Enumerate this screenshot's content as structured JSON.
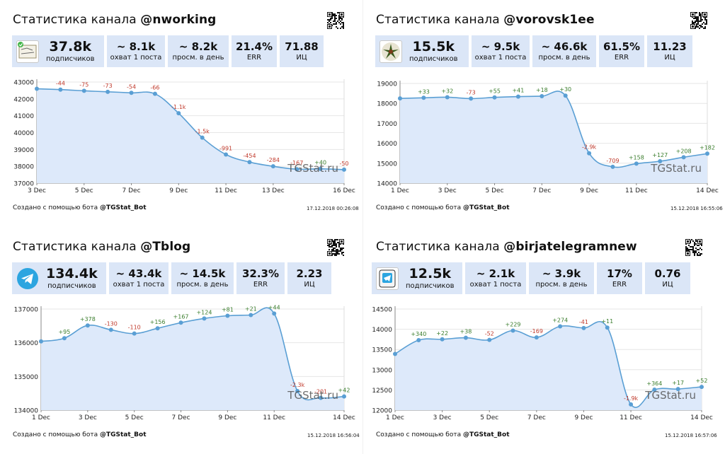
{
  "title_prefix": "Статистика канала",
  "credit_prefix": "Создано с помощью бота",
  "credit_bot": "@TGStat_Bot",
  "watermark": "TGStat.ru",
  "colors": {
    "line": "#5a9fd4",
    "fill": "#dde9fa",
    "pos": "#3a7d2c",
    "neg": "#c0392b",
    "box": "#dbe6f7"
  },
  "panels": [
    {
      "channel": "@nworking",
      "stats": [
        {
          "value": "37.8k",
          "label": "подписчиков"
        },
        {
          "value": "~ 8.1k",
          "label": "охват 1 поста"
        },
        {
          "value": "~ 8.2k",
          "label": "просм. в день"
        },
        {
          "value": "21.4%",
          "label": "ERR"
        },
        {
          "value": "71.88",
          "label": "ИЦ"
        }
      ],
      "timestamp": "17.12.2018 00:26:08",
      "chart_data": {
        "type": "area",
        "x": [
          "3 Dec",
          "4 Dec",
          "5 Dec",
          "6 Dec",
          "7 Dec",
          "8 Dec",
          "9 Dec",
          "10 Dec",
          "11 Dec",
          "12 Dec",
          "13 Dec",
          "14 Dec",
          "15 Dec",
          "16 Dec"
        ],
        "xticks": [
          "3 Dec",
          "5 Dec",
          "7 Dec",
          "9 Dec",
          "11 Dec",
          "13 Dec",
          "16 Dec"
        ],
        "values": [
          42600,
          42550,
          42480,
          42420,
          42360,
          42300,
          41150,
          39700,
          38700,
          38250,
          38000,
          37830,
          37850,
          37800
        ],
        "deltas": [
          "",
          "-44",
          "-75",
          "-73",
          "-54",
          "-66",
          "-1.1k",
          "-1.5k",
          "-991",
          "-454",
          "-284",
          "-167",
          "+40",
          "-50"
        ],
        "ylim": [
          37000,
          43000
        ],
        "yticks": [
          37000,
          38000,
          39000,
          40000,
          41000,
          42000,
          43000
        ]
      }
    },
    {
      "channel": "@vorovsk1ee",
      "stats": [
        {
          "value": "15.5k",
          "label": "подписчиков"
        },
        {
          "value": "~ 9.5k",
          "label": "охват 1 поста"
        },
        {
          "value": "~ 46.6k",
          "label": "просм. в день"
        },
        {
          "value": "61.5%",
          "label": "ERR"
        },
        {
          "value": "11.23",
          "label": "ИЦ"
        }
      ],
      "timestamp": "15.12.2018 16:55:06",
      "chart_data": {
        "type": "area",
        "x": [
          "1 Dec",
          "2 Dec",
          "3 Dec",
          "4 Dec",
          "5 Dec",
          "6 Dec",
          "7 Dec",
          "8 Dec",
          "9 Dec",
          "10 Dec",
          "11 Dec",
          "12 Dec",
          "13 Dec",
          "14 Dec"
        ],
        "xticks": [
          "1 Dec",
          "3 Dec",
          "5 Dec",
          "7 Dec",
          "9 Dec",
          "11 Dec",
          "14 Dec"
        ],
        "values": [
          18250,
          18280,
          18310,
          18240,
          18300,
          18340,
          18360,
          18390,
          15500,
          14820,
          14980,
          15100,
          15300,
          15480
        ],
        "deltas": [
          "",
          "+33",
          "+32",
          "-73",
          "+55",
          "+41",
          "+18",
          "+30",
          "-2.9k",
          "-709",
          "+158",
          "+127",
          "+208",
          "+182"
        ],
        "ylim": [
          14000,
          19000
        ],
        "yticks": [
          14000,
          15000,
          16000,
          17000,
          18000,
          19000
        ]
      }
    },
    {
      "channel": "@Tblog",
      "stats": [
        {
          "value": "134.4k",
          "label": "подписчиков"
        },
        {
          "value": "~ 43.4k",
          "label": "охват 1 поста"
        },
        {
          "value": "~ 14.5k",
          "label": "просм. в день"
        },
        {
          "value": "32.3%",
          "label": "ERR"
        },
        {
          "value": "2.23",
          "label": "ИЦ"
        }
      ],
      "timestamp": "15.12.2018 16:56:04",
      "chart_data": {
        "type": "area",
        "x": [
          "1 Dec",
          "2 Dec",
          "3 Dec",
          "4 Dec",
          "5 Dec",
          "6 Dec",
          "7 Dec",
          "8 Dec",
          "9 Dec",
          "10 Dec",
          "11 Dec",
          "12 Dec",
          "13 Dec",
          "14 Dec"
        ],
        "xticks": [
          "1 Dec",
          "3 Dec",
          "5 Dec",
          "7 Dec",
          "9 Dec",
          "11 Dec",
          "14 Dec"
        ],
        "values": [
          136040,
          136135,
          136513,
          136383,
          136273,
          136429,
          136596,
          136720,
          136801,
          136822,
          136866,
          134566,
          134365,
          134407
        ],
        "deltas": [
          "",
          "+95",
          "+378",
          "-130",
          "-110",
          "+156",
          "+167",
          "+124",
          "+81",
          "+21",
          "+44",
          "-2.3k",
          "-201",
          "+42"
        ],
        "ylim": [
          134000,
          137000
        ],
        "yticks": [
          134000,
          135000,
          136000,
          137000
        ]
      }
    },
    {
      "channel": "@birjatelegramnew",
      "stats": [
        {
          "value": "12.5k",
          "label": "подписчиков"
        },
        {
          "value": "~ 2.1k",
          "label": "охват 1 поста"
        },
        {
          "value": "~ 3.9k",
          "label": "просм. в день"
        },
        {
          "value": "17%",
          "label": "ERR"
        },
        {
          "value": "0.76",
          "label": "ИЦ"
        }
      ],
      "timestamp": "15.12.2018 16:57:06",
      "chart_data": {
        "type": "area",
        "x": [
          "1 Dec",
          "2 Dec",
          "3 Dec",
          "4 Dec",
          "5 Dec",
          "6 Dec",
          "7 Dec",
          "8 Dec",
          "9 Dec",
          "10 Dec",
          "11 Dec",
          "12 Dec",
          "13 Dec",
          "14 Dec"
        ],
        "xticks": [
          "1 Dec",
          "3 Dec",
          "5 Dec",
          "7 Dec",
          "9 Dec",
          "11 Dec",
          "14 Dec"
        ],
        "values": [
          13390,
          13730,
          13752,
          13790,
          13738,
          13967,
          13798,
          14072,
          14031,
          14042,
          12142,
          12506,
          12523,
          12575
        ],
        "deltas": [
          "",
          "+340",
          "+22",
          "+38",
          "-52",
          "+229",
          "-169",
          "+274",
          "-41",
          "+11",
          "-1.9k",
          "+364",
          "+17",
          "+52"
        ],
        "ylim": [
          12000,
          14500
        ],
        "yticks": [
          12000,
          12500,
          13000,
          13500,
          14000,
          14500
        ]
      }
    }
  ]
}
